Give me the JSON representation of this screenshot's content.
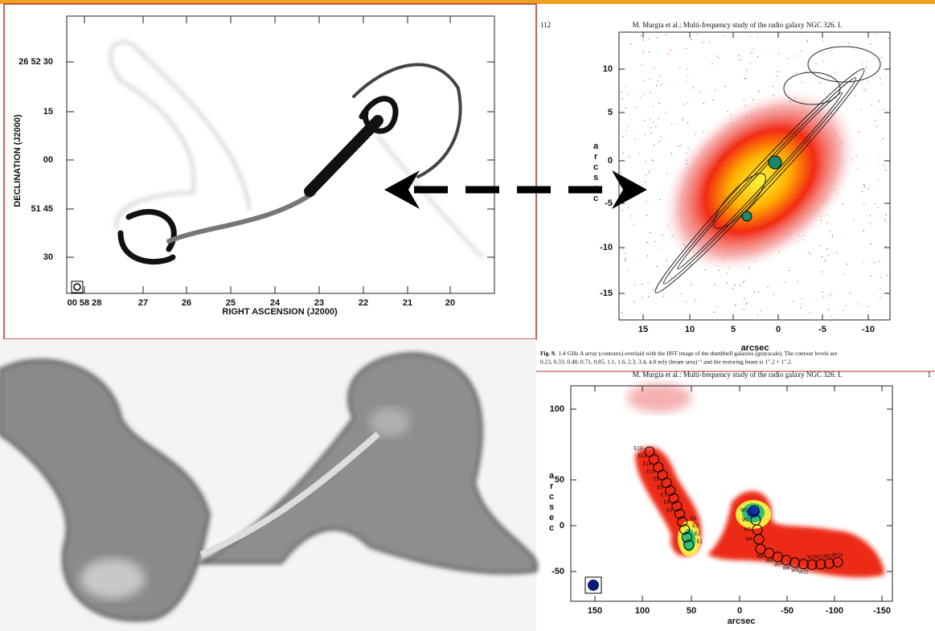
{
  "radio_map": {
    "y_axis_title": "DECLINATION (J2000)",
    "y_ticks": [
      "26 52 30",
      "15",
      "00",
      "51 45",
      "30"
    ],
    "x_axis_title": "RIGHT ASCENSION (J2000)",
    "x_ticks": [
      "00 58 28",
      "27",
      "26",
      "25",
      "24",
      "23",
      "22",
      "21",
      "20"
    ]
  },
  "hst_overlay": {
    "page_number": "112",
    "running_head": "M. Murgia et al.: Multi-frequency study of the radio galaxy NGC 326. I.",
    "y_axis_title": "arcsec",
    "y_ticks": [
      "10",
      "5",
      "0",
      "-5",
      "-10",
      "-15"
    ],
    "x_axis_title": "arcsec",
    "x_ticks": [
      "15",
      "10",
      "5",
      "0",
      "-5",
      "-10"
    ],
    "caption_label": "Fig. 9.",
    "caption_line1": "1.4 GHz A array (contours) overlaid with the HST image of the dumbbell galaxies (grayscale). The contour levels are",
    "caption_line2": "0.23, 0.33, 0.48, 0.71, 0.85, 1.1, 1.6, 2.3, 3.4, 4.8 mJy (beam area)⁻¹ and the restoring beam is 1″.2 × 1″.2."
  },
  "spectral_map": {
    "running_head": "M. Murgia et al.: Multi-frequency study of the radio galaxy NGC 326. I.",
    "page_number": "1",
    "y_axis_title": "arcsec",
    "y_ticks": [
      "100",
      "50",
      "0",
      "-50"
    ],
    "x_axis_title": "arcsec",
    "x_ticks": [
      "150",
      "100",
      "50",
      "0",
      "-50",
      "-100",
      "-150"
    ],
    "east_labels": [
      "E13",
      "E12",
      "E11",
      "E10",
      "E9",
      "E8",
      "E7",
      "E6",
      "E5",
      "E4",
      "E3",
      "E2",
      "E1"
    ],
    "west_labels": [
      "W1",
      "W2",
      "W3",
      "W4",
      "W5",
      "W6",
      "W7",
      "W8",
      "W9",
      "W10",
      "W11",
      "W12",
      "W13",
      "W14"
    ]
  }
}
